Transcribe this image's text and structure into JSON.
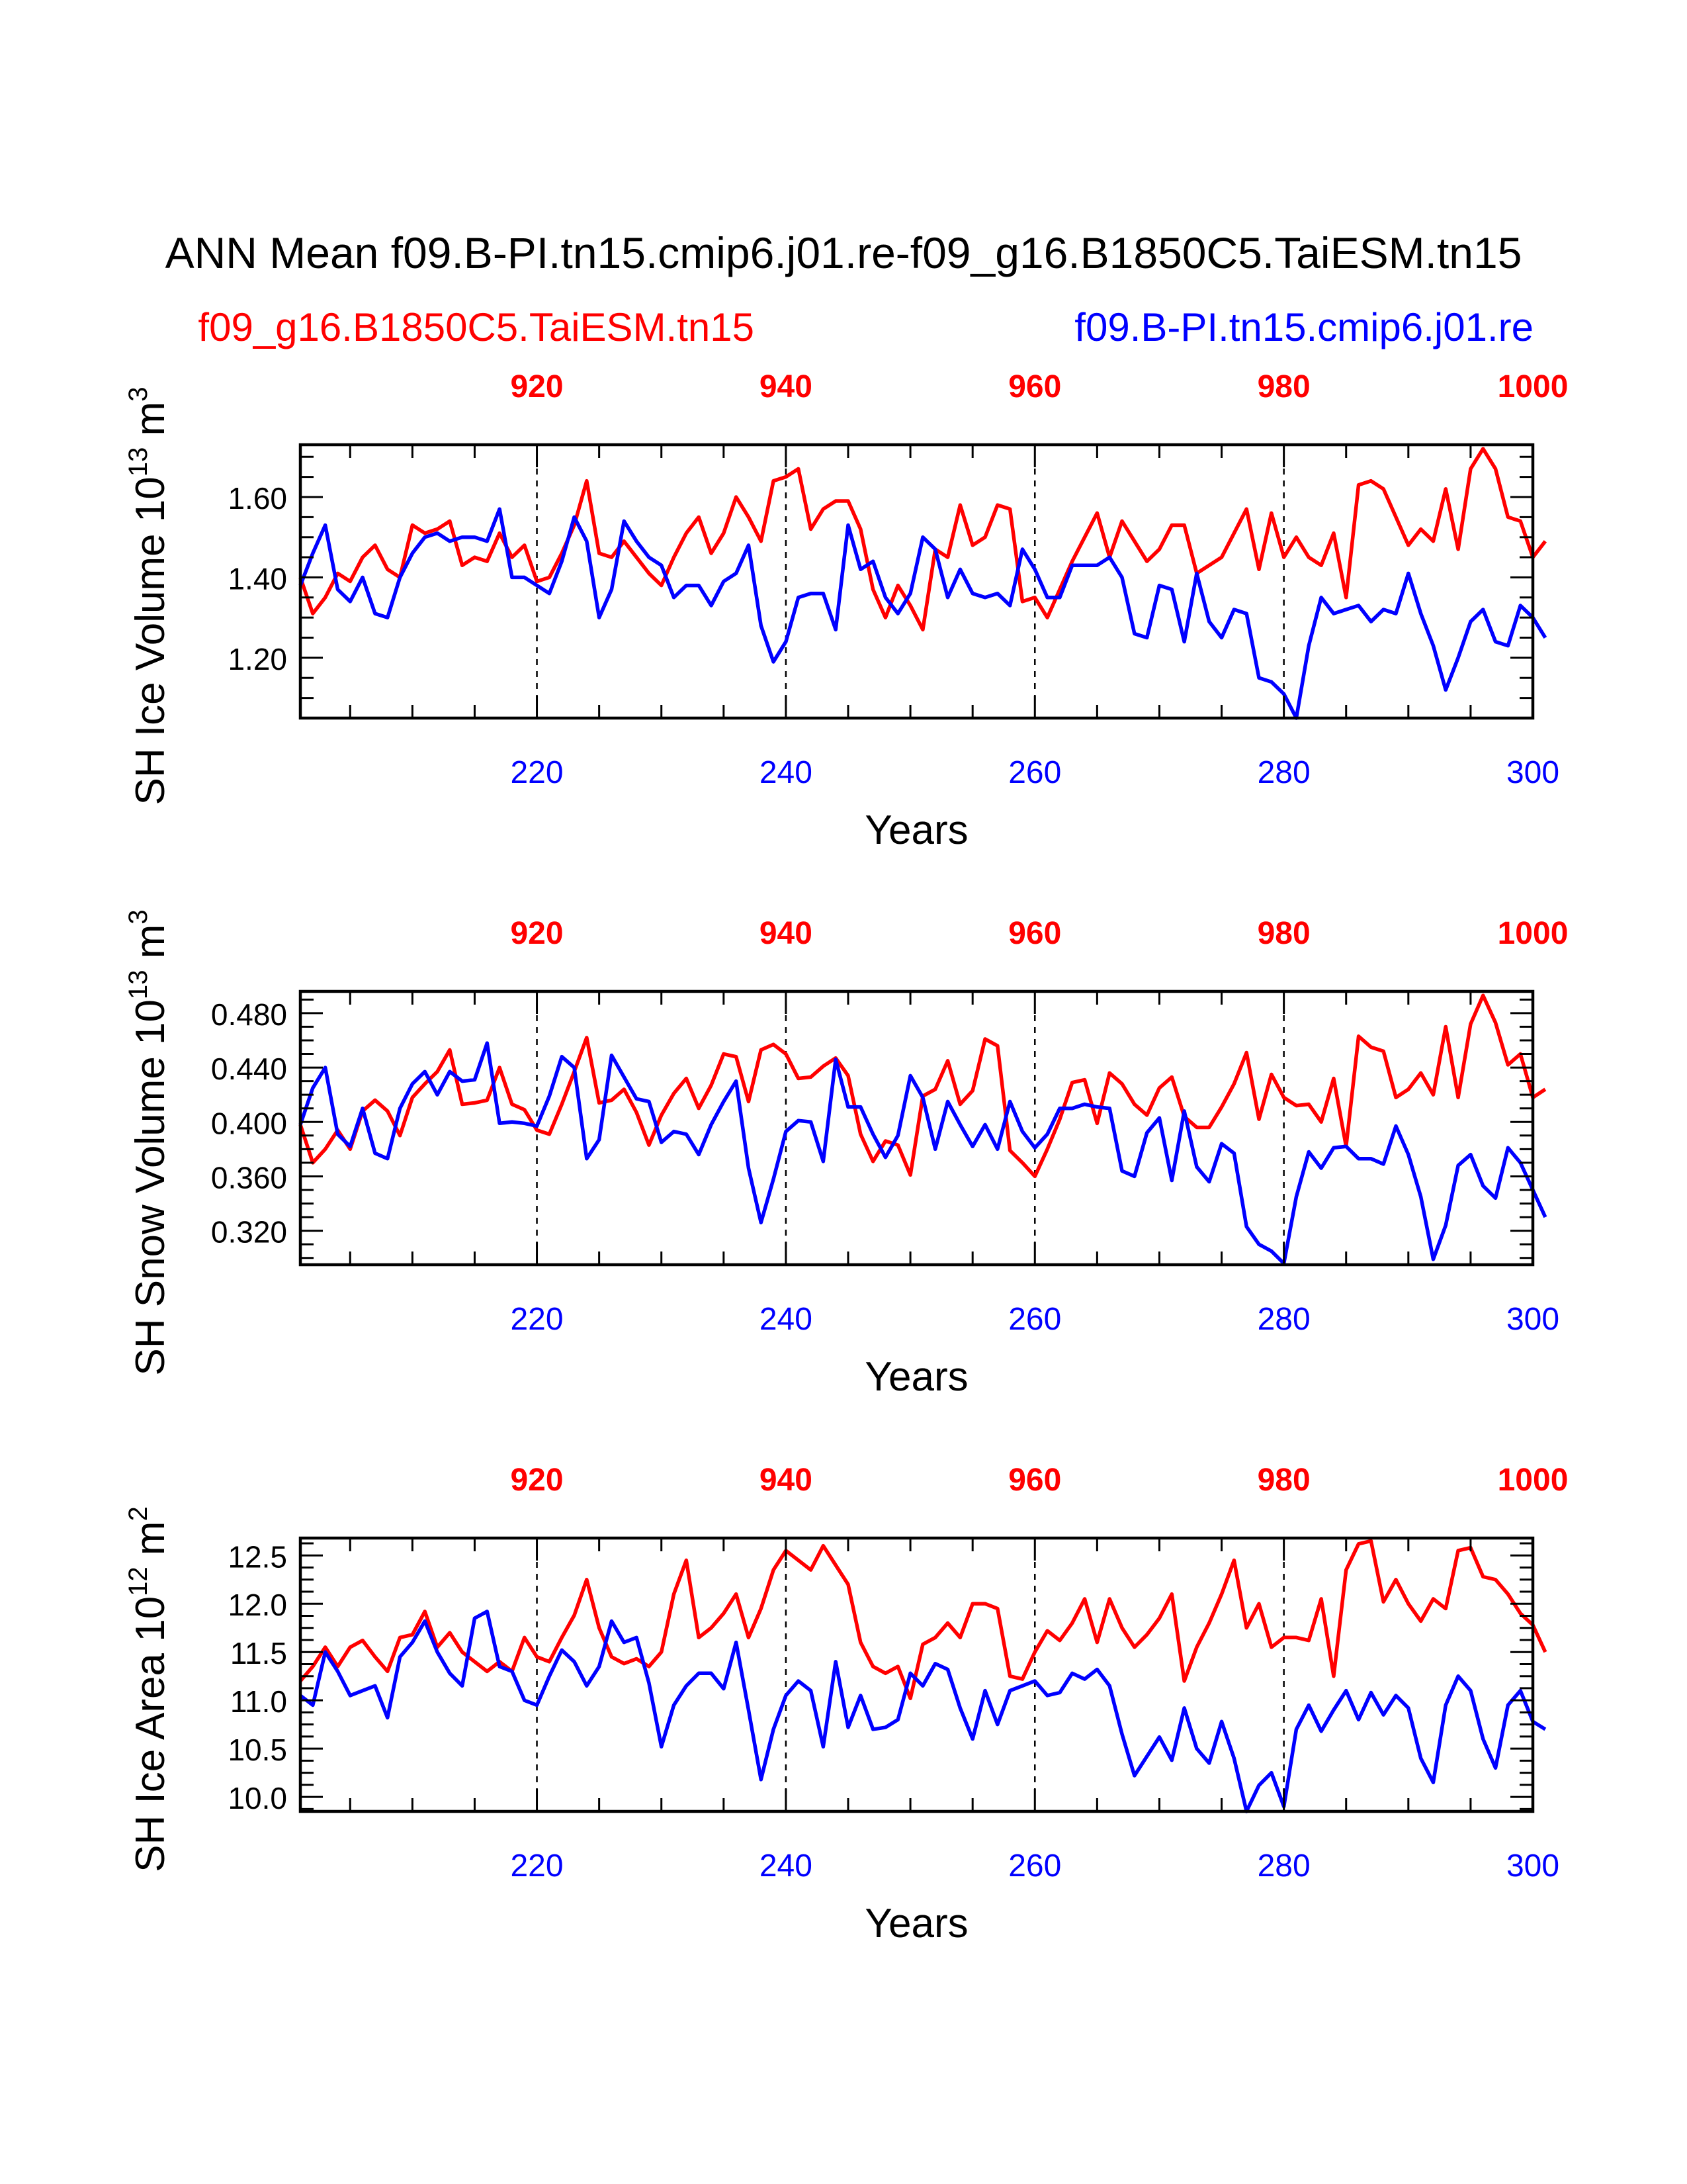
{
  "title": "ANN Mean f09.B-PI.tn15.cmip6.j01.re-f09_g16.B1850C5.TaiESM.tn15",
  "legend": {
    "red_label": "f09_g16.B1850C5.TaiESM.tn15",
    "blue_label": "f09.B-PI.tn15.cmip6.j01.re"
  },
  "colors": {
    "red": "#ff0000",
    "blue": "#0000ff",
    "axis": "#000000"
  },
  "chart_data": [
    {
      "type": "line",
      "ylabel": "SH Ice Volume 10^13 m^3",
      "ylabel_parts": [
        "SH Ice Volume 10",
        "13",
        " m",
        "3"
      ],
      "xlabel": "Years",
      "ylim": [
        1.05,
        1.73
      ],
      "yticks": [
        1.2,
        1.4,
        1.6
      ],
      "ytick_labels": [
        "1.20",
        "1.40",
        "1.60"
      ],
      "xlim": [
        201,
        300
      ],
      "xticks": [
        220,
        240,
        260,
        280,
        300
      ],
      "xtick_labels": [
        "220",
        "240",
        "260",
        "280",
        "300"
      ],
      "top_xlim": [
        901,
        1000
      ],
      "top_xticks": [
        920,
        940,
        960,
        980,
        1000
      ],
      "top_xtick_labels": [
        "920",
        "940",
        "960",
        "980",
        "1000"
      ],
      "series": [
        {
          "name": "f09_g16.B1850C5.TaiESM.tn15",
          "color": "#ff0000",
          "x_start": 901,
          "values": [
            1.4,
            1.31,
            1.35,
            1.41,
            1.39,
            1.45,
            1.48,
            1.42,
            1.4,
            1.53,
            1.51,
            1.52,
            1.54,
            1.43,
            1.45,
            1.44,
            1.51,
            1.45,
            1.48,
            1.39,
            1.4,
            1.46,
            1.53,
            1.64,
            1.46,
            1.45,
            1.49,
            1.45,
            1.41,
            1.38,
            1.45,
            1.51,
            1.55,
            1.46,
            1.51,
            1.6,
            1.55,
            1.49,
            1.64,
            1.65,
            1.67,
            1.52,
            1.57,
            1.59,
            1.59,
            1.52,
            1.37,
            1.3,
            1.38,
            1.33,
            1.27,
            1.47,
            1.45,
            1.58,
            1.48,
            1.5,
            1.58,
            1.57,
            1.34,
            1.35,
            1.3,
            1.37,
            1.44,
            1.5,
            1.56,
            1.45,
            1.54,
            1.49,
            1.44,
            1.47,
            1.53,
            1.53,
            1.41,
            1.43,
            1.45,
            1.51,
            1.57,
            1.42,
            1.56,
            1.45,
            1.5,
            1.45,
            1.43,
            1.51,
            1.35,
            1.63,
            1.64,
            1.62,
            1.55,
            1.48,
            1.52,
            1.49,
            1.62,
            1.47,
            1.67,
            1.72,
            1.67,
            1.55,
            1.54,
            1.45,
            1.49
          ]
        },
        {
          "name": "f09.B-PI.tn15.cmip6.j01.re",
          "color": "#0000ff",
          "x_start": 201,
          "values": [
            1.38,
            1.46,
            1.53,
            1.37,
            1.34,
            1.4,
            1.31,
            1.3,
            1.4,
            1.46,
            1.5,
            1.51,
            1.49,
            1.5,
            1.5,
            1.49,
            1.57,
            1.4,
            1.4,
            1.38,
            1.36,
            1.44,
            1.55,
            1.49,
            1.3,
            1.37,
            1.54,
            1.49,
            1.45,
            1.43,
            1.35,
            1.38,
            1.38,
            1.33,
            1.39,
            1.41,
            1.48,
            1.28,
            1.19,
            1.24,
            1.35,
            1.36,
            1.36,
            1.27,
            1.53,
            1.42,
            1.44,
            1.35,
            1.31,
            1.36,
            1.5,
            1.47,
            1.35,
            1.42,
            1.36,
            1.35,
            1.36,
            1.33,
            1.47,
            1.42,
            1.35,
            1.35,
            1.43,
            1.43,
            1.43,
            1.45,
            1.4,
            1.26,
            1.25,
            1.38,
            1.37,
            1.24,
            1.41,
            1.29,
            1.25,
            1.32,
            1.31,
            1.15,
            1.14,
            1.11,
            1.05,
            1.23,
            1.35,
            1.31,
            1.32,
            1.33,
            1.29,
            1.32,
            1.31,
            1.41,
            1.31,
            1.23,
            1.12,
            1.2,
            1.29,
            1.32,
            1.24,
            1.23,
            1.33,
            1.3,
            1.25
          ]
        }
      ]
    },
    {
      "type": "line",
      "ylabel": "SH Snow Volume 10^13 m^3",
      "ylabel_parts": [
        "SH Snow Volume 10",
        "13",
        " m",
        "3"
      ],
      "xlabel": "Years",
      "ylim": [
        0.295,
        0.496
      ],
      "yticks": [
        0.32,
        0.36,
        0.4,
        0.44,
        0.48
      ],
      "ytick_labels": [
        "0.320",
        "0.360",
        "0.400",
        "0.440",
        "0.480"
      ],
      "xlim": [
        201,
        300
      ],
      "xticks": [
        220,
        240,
        260,
        280,
        300
      ],
      "xtick_labels": [
        "220",
        "240",
        "260",
        "280",
        "300"
      ],
      "top_xlim": [
        901,
        1000
      ],
      "top_xticks": [
        920,
        940,
        960,
        980,
        1000
      ],
      "top_xtick_labels": [
        "920",
        "940",
        "960",
        "980",
        "1000"
      ],
      "series": [
        {
          "name": "f09_g16.B1850C5.TaiESM.tn15",
          "color": "#ff0000",
          "x_start": 901,
          "values": [
            0.398,
            0.37,
            0.38,
            0.394,
            0.38,
            0.408,
            0.416,
            0.408,
            0.39,
            0.418,
            0.428,
            0.437,
            0.453,
            0.413,
            0.414,
            0.416,
            0.44,
            0.413,
            0.409,
            0.394,
            0.391,
            0.413,
            0.437,
            0.462,
            0.414,
            0.416,
            0.424,
            0.407,
            0.383,
            0.405,
            0.421,
            0.432,
            0.41,
            0.427,
            0.45,
            0.448,
            0.415,
            0.453,
            0.457,
            0.45,
            0.432,
            0.433,
            0.441,
            0.447,
            0.434,
            0.391,
            0.371,
            0.386,
            0.383,
            0.361,
            0.419,
            0.424,
            0.445,
            0.413,
            0.423,
            0.461,
            0.456,
            0.379,
            0.37,
            0.36,
            0.38,
            0.402,
            0.429,
            0.431,
            0.399,
            0.436,
            0.428,
            0.413,
            0.405,
            0.425,
            0.433,
            0.404,
            0.396,
            0.396,
            0.411,
            0.428,
            0.451,
            0.402,
            0.435,
            0.418,
            0.412,
            0.413,
            0.4,
            0.432,
            0.382,
            0.463,
            0.455,
            0.452,
            0.418,
            0.424,
            0.436,
            0.42,
            0.47,
            0.418,
            0.472,
            0.493,
            0.473,
            0.442,
            0.45,
            0.418,
            0.424
          ]
        },
        {
          "name": "f09.B-PI.tn15.cmip6.j01.re",
          "color": "#0000ff",
          "x_start": 201,
          "values": [
            0.398,
            0.425,
            0.44,
            0.391,
            0.382,
            0.41,
            0.377,
            0.373,
            0.41,
            0.428,
            0.437,
            0.42,
            0.437,
            0.43,
            0.431,
            0.458,
            0.399,
            0.4,
            0.399,
            0.397,
            0.419,
            0.448,
            0.44,
            0.373,
            0.387,
            0.449,
            0.433,
            0.417,
            0.415,
            0.385,
            0.393,
            0.391,
            0.376,
            0.398,
            0.415,
            0.43,
            0.366,
            0.326,
            0.358,
            0.393,
            0.401,
            0.4,
            0.371,
            0.446,
            0.411,
            0.411,
            0.391,
            0.374,
            0.39,
            0.434,
            0.418,
            0.38,
            0.415,
            0.398,
            0.382,
            0.398,
            0.38,
            0.415,
            0.393,
            0.381,
            0.391,
            0.41,
            0.41,
            0.413,
            0.411,
            0.41,
            0.364,
            0.36,
            0.392,
            0.403,
            0.357,
            0.408,
            0.367,
            0.356,
            0.384,
            0.377,
            0.323,
            0.31,
            0.305,
            0.296,
            0.345,
            0.378,
            0.366,
            0.381,
            0.382,
            0.373,
            0.373,
            0.369,
            0.397,
            0.376,
            0.345,
            0.299,
            0.324,
            0.368,
            0.376,
            0.353,
            0.344,
            0.381,
            0.37,
            0.35,
            0.33
          ]
        }
      ]
    },
    {
      "type": "line",
      "ylabel": "SH Ice Area 10^12 m^2",
      "ylabel_parts": [
        "SH Ice Area 10",
        "12",
        " m",
        "2"
      ],
      "xlabel": "Years",
      "ylim": [
        9.85,
        12.68
      ],
      "yticks": [
        10.0,
        10.5,
        11.0,
        11.5,
        12.0,
        12.5
      ],
      "ytick_labels": [
        "10.0",
        "10.5",
        "11.0",
        "11.5",
        "12.0",
        "12.5"
      ],
      "xlim": [
        201,
        300
      ],
      "xticks": [
        220,
        240,
        260,
        280,
        300
      ],
      "xtick_labels": [
        "220",
        "240",
        "260",
        "280",
        "300"
      ],
      "top_xlim": [
        901,
        1000
      ],
      "top_xticks": [
        920,
        940,
        960,
        980,
        1000
      ],
      "top_xtick_labels": [
        "920",
        "940",
        "960",
        "980",
        "1000"
      ],
      "series": [
        {
          "name": "f09_g16.B1850C5.TaiESM.tn15",
          "color": "#ff0000",
          "x_start": 901,
          "values": [
            11.2,
            11.35,
            11.55,
            11.35,
            11.55,
            11.62,
            11.45,
            11.3,
            11.65,
            11.68,
            11.92,
            11.55,
            11.7,
            11.5,
            11.4,
            11.3,
            11.4,
            11.3,
            11.65,
            11.45,
            11.4,
            11.65,
            11.88,
            12.25,
            11.75,
            11.45,
            11.38,
            11.43,
            11.35,
            11.5,
            12.1,
            12.45,
            11.65,
            11.75,
            11.9,
            12.1,
            11.65,
            11.95,
            12.35,
            12.55,
            12.45,
            12.35,
            12.6,
            12.4,
            12.2,
            11.6,
            11.35,
            11.28,
            11.35,
            11.02,
            11.58,
            11.65,
            11.8,
            11.65,
            12.0,
            12.0,
            11.95,
            11.25,
            11.22,
            11.5,
            11.72,
            11.62,
            11.8,
            12.05,
            11.6,
            12.05,
            11.75,
            11.55,
            11.68,
            11.85,
            12.1,
            11.2,
            11.55,
            11.8,
            12.1,
            12.45,
            11.75,
            12.0,
            11.55,
            11.65,
            11.65,
            11.62,
            12.05,
            11.25,
            12.35,
            12.62,
            12.65,
            12.02,
            12.25,
            12.0,
            11.82,
            12.05,
            11.95,
            12.55,
            12.58,
            12.28,
            12.25,
            12.1,
            11.9,
            11.78,
            11.5
          ]
        },
        {
          "name": "f09.B-PI.tn15.cmip6.j01.re",
          "color": "#0000ff",
          "x_start": 201,
          "values": [
            11.05,
            10.95,
            11.5,
            11.3,
            11.05,
            11.1,
            11.15,
            10.82,
            11.45,
            11.6,
            11.82,
            11.5,
            11.28,
            11.15,
            11.85,
            11.92,
            11.35,
            11.3,
            11.0,
            10.95,
            11.25,
            11.52,
            11.4,
            11.15,
            11.35,
            11.82,
            11.6,
            11.65,
            11.18,
            10.52,
            10.95,
            11.15,
            11.28,
            11.28,
            11.12,
            11.6,
            10.9,
            10.18,
            10.7,
            11.05,
            11.2,
            11.1,
            10.52,
            11.4,
            10.72,
            11.05,
            10.7,
            10.72,
            10.8,
            11.28,
            11.15,
            11.38,
            11.32,
            10.92,
            10.6,
            11.1,
            10.75,
            11.1,
            11.15,
            11.2,
            11.05,
            11.08,
            11.28,
            11.22,
            11.32,
            11.15,
            10.65,
            10.22,
            10.42,
            10.62,
            10.38,
            10.92,
            10.5,
            10.35,
            10.78,
            10.4,
            9.85,
            10.12,
            10.25,
            9.9,
            10.7,
            10.95,
            10.68,
            10.9,
            11.1,
            10.8,
            11.08,
            10.85,
            11.05,
            10.92,
            10.4,
            10.15,
            10.95,
            11.25,
            11.1,
            10.6,
            10.3,
            10.95,
            11.1,
            10.78,
            10.7
          ]
        }
      ]
    }
  ]
}
